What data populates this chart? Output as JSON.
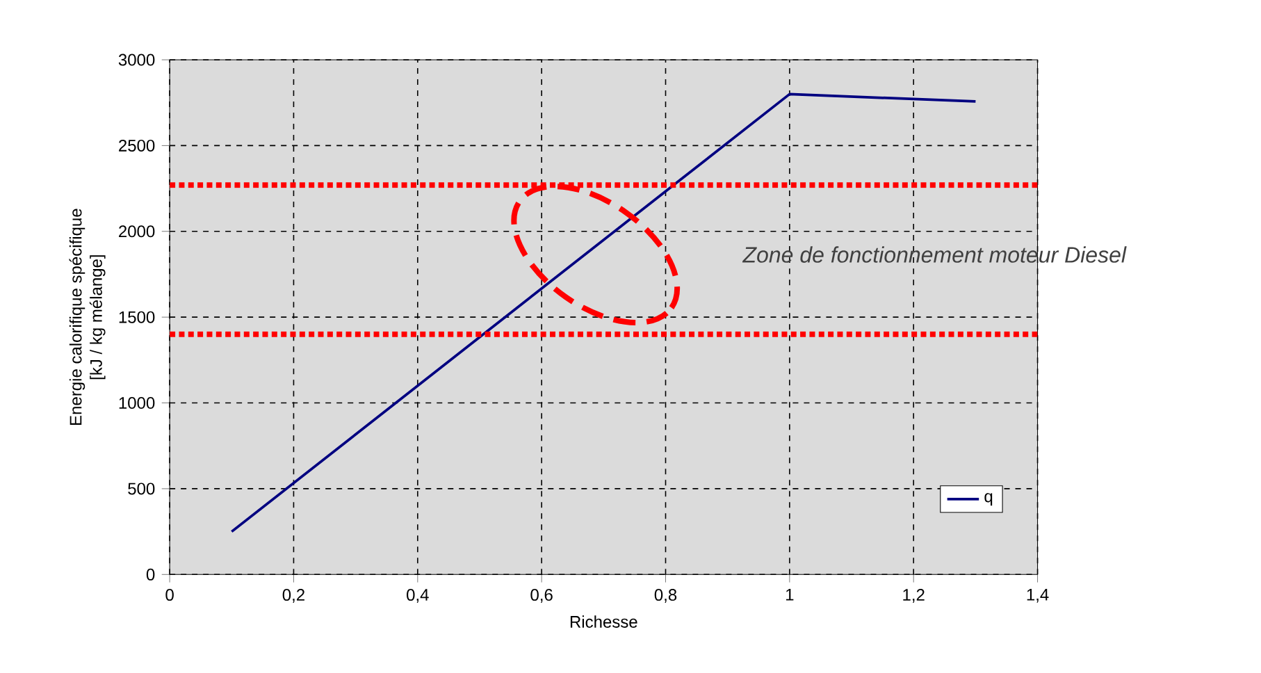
{
  "chart_data": {
    "type": "line",
    "xlabel": "Richesse",
    "ylabel": "Energie calorifique spécifique\n[kJ / kg mélange]",
    "x": [
      0.1,
      1.0,
      1.3
    ],
    "series": [
      {
        "name": "q",
        "color": "#000080",
        "values": [
          250,
          2800,
          2757
        ]
      }
    ],
    "xlim": [
      0,
      1.4
    ],
    "xticks": [
      0,
      {
        "value": 0.2,
        "label": "0,2"
      },
      {
        "value": 0.4,
        "label": "0,4"
      },
      {
        "value": 0.6,
        "label": "0,6"
      },
      {
        "value": 0.8,
        "label": "0,8"
      },
      1,
      {
        "value": 1.2,
        "label": "1,2"
      },
      {
        "value": 1.4,
        "label": "1,4"
      }
    ],
    "ylim": [
      0,
      3000
    ],
    "yticks": [
      0,
      500,
      1000,
      1500,
      2000,
      2500,
      3000
    ],
    "grid": true,
    "legend": "bottom right",
    "marker": "none",
    "line_style": "solid",
    "ref_lines": [
      {
        "axis": "y",
        "value": 2270,
        "color": "#ff0000",
        "line_style": "dotted"
      },
      {
        "axis": "y",
        "value": 1400,
        "color": "#ff0000",
        "line_style": "dotted"
      }
    ],
    "annotations": [
      "Zone de fonctionnement moteur Diesel"
    ]
  }
}
